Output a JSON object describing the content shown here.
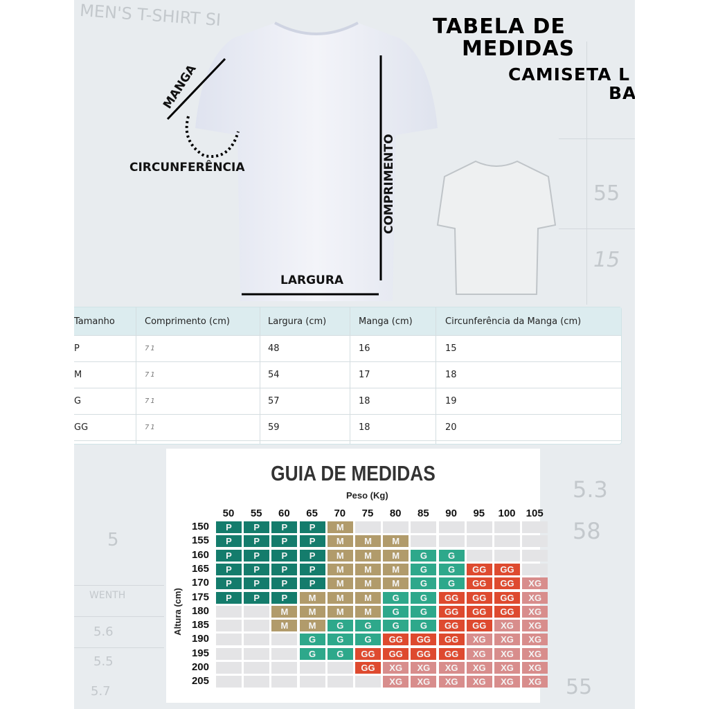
{
  "header": {
    "title_line1": "TABELA DE",
    "title_line2": "MEDIDAS",
    "subtitle_line1": "CAMISETA L",
    "subtitle_line2": "BA"
  },
  "background_text": {
    "top": "MEN'S T-SHIRT SI",
    "r1": "55",
    "r2": "15",
    "r3": "5.3",
    "r4": "58",
    "r5": "55",
    "l1": "5",
    "l2": "WENTH",
    "l3": "5.6",
    "l4": "5.5",
    "l5": "5.7"
  },
  "diagram": {
    "manga": "MANGA",
    "circ": "CIRCUNFERÊNCIA",
    "comprimento": "COMPRIMENTO",
    "largura": "LARGURA"
  },
  "table": {
    "headers": [
      "Tamanho",
      "Comprimento (cm)",
      "Largura (cm)",
      "Manga (cm)",
      "Circunferência da Manga (cm)"
    ],
    "rows": [
      [
        "P",
        "71",
        "48",
        "16",
        "15"
      ],
      [
        "M",
        "71",
        "54",
        "17",
        "18"
      ],
      [
        "G",
        "71",
        "57",
        "18",
        "19"
      ],
      [
        "GG",
        "71",
        "59",
        "18",
        "20"
      ]
    ]
  },
  "guide": {
    "title": "GUIA DE MEDIDAS",
    "x_label": "Peso (Kg)",
    "y_label": "Altura (cm)",
    "weights": [
      "50",
      "55",
      "60",
      "65",
      "70",
      "75",
      "80",
      "85",
      "90",
      "95",
      "100",
      "105"
    ],
    "heights": [
      "150",
      "155",
      "160",
      "165",
      "170",
      "175",
      "180",
      "185",
      "190",
      "195",
      "200",
      "205"
    ],
    "grid": [
      [
        "P",
        "P",
        "P",
        "P",
        "M",
        "",
        "",
        "",
        "",
        "",
        "",
        ""
      ],
      [
        "P",
        "P",
        "P",
        "P",
        "M",
        "M",
        "M",
        "",
        "",
        "",
        "",
        ""
      ],
      [
        "P",
        "P",
        "P",
        "P",
        "M",
        "M",
        "M",
        "G",
        "G",
        "",
        "",
        ""
      ],
      [
        "P",
        "P",
        "P",
        "P",
        "M",
        "M",
        "M",
        "G",
        "G",
        "GG",
        "GG",
        ""
      ],
      [
        "P",
        "P",
        "P",
        "P",
        "M",
        "M",
        "M",
        "G",
        "G",
        "GG",
        "GG",
        "XG"
      ],
      [
        "P",
        "P",
        "P",
        "M",
        "M",
        "M",
        "G",
        "G",
        "GG",
        "GG",
        "GG",
        "XG"
      ],
      [
        "",
        "",
        "M",
        "M",
        "M",
        "M",
        "G",
        "G",
        "GG",
        "GG",
        "GG",
        "XG"
      ],
      [
        "",
        "",
        "M",
        "M",
        "G",
        "G",
        "G",
        "G",
        "GG",
        "GG",
        "XG",
        "XG"
      ],
      [
        "",
        "",
        "",
        "G",
        "G",
        "G",
        "GG",
        "GG",
        "GG",
        "XG",
        "XG",
        "XG"
      ],
      [
        "",
        "",
        "",
        "G",
        "G",
        "GG",
        "GG",
        "GG",
        "GG",
        "XG",
        "XG",
        "XG"
      ],
      [
        "",
        "",
        "",
        "",
        "",
        "GG",
        "XG",
        "XG",
        "XG",
        "XG",
        "XG",
        "XG"
      ],
      [
        "",
        "",
        "",
        "",
        "",
        "",
        "XG",
        "XG",
        "XG",
        "XG",
        "XG",
        "XG"
      ]
    ],
    "colors": {
      "P": "#147c6c",
      "M": "#b19b6b",
      "G": "#2ea88b",
      "GG": "#de4a2f",
      "XG": "#d88d8c",
      "": "#e4e4e6"
    }
  }
}
